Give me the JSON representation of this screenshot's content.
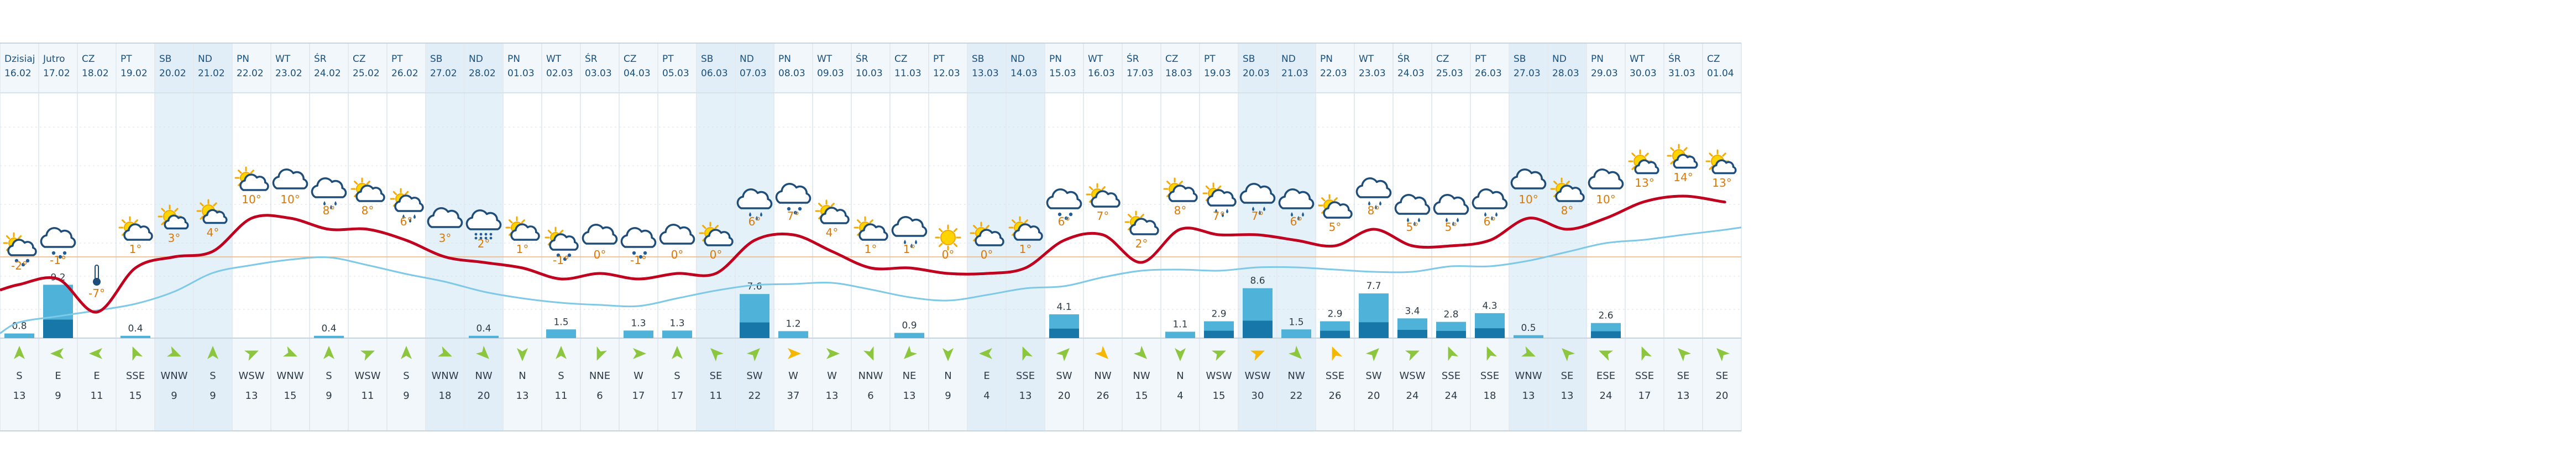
{
  "chart_data": {
    "type": "meteogram",
    "days": [
      {
        "day": "Dzisiaj",
        "date": "16.02",
        "temp": -2,
        "weather": "partly-cloudy-snow",
        "precip": 0.8,
        "wind_dir": "S",
        "wind_speed": 13,
        "weekend": false
      },
      {
        "day": "Jutro",
        "date": "17.02",
        "temp": -1,
        "weather": "cloud-snow",
        "precip": 9.2,
        "wind_dir": "E",
        "wind_speed": 9,
        "weekend": false
      },
      {
        "day": "CZ",
        "date": "18.02",
        "temp": -7,
        "weather": "cold-thermometer",
        "precip": 0,
        "wind_dir": "E",
        "wind_speed": 11,
        "weekend": false
      },
      {
        "day": "PT",
        "date": "19.02",
        "temp": 1,
        "weather": "partly-cloudy",
        "precip": 0.4,
        "wind_dir": "SSE",
        "wind_speed": 15,
        "weekend": false
      },
      {
        "day": "SB",
        "date": "20.02",
        "temp": 3,
        "weather": "sunny-cloud",
        "precip": 0,
        "wind_dir": "WNW",
        "wind_speed": 9,
        "weekend": true
      },
      {
        "day": "ND",
        "date": "21.02",
        "temp": 4,
        "weather": "sunny-cloud",
        "precip": 0,
        "wind_dir": "S",
        "wind_speed": 9,
        "weekend": true
      },
      {
        "day": "PN",
        "date": "22.02",
        "temp": 10,
        "weather": "partly-cloudy",
        "precip": 0,
        "wind_dir": "WSW",
        "wind_speed": 13,
        "weekend": false
      },
      {
        "day": "WT",
        "date": "23.02",
        "temp": 10,
        "weather": "cloudy",
        "precip": 0,
        "wind_dir": "WNW",
        "wind_speed": 15,
        "weekend": false
      },
      {
        "day": "ŚR",
        "date": "24.02",
        "temp": 8,
        "weather": "cloud-rain",
        "precip": 0.4,
        "wind_dir": "S",
        "wind_speed": 9,
        "weekend": false
      },
      {
        "day": "CZ",
        "date": "25.02",
        "temp": 8,
        "weather": "partly-cloudy",
        "precip": 0,
        "wind_dir": "WSW",
        "wind_speed": 11,
        "weekend": false
      },
      {
        "day": "PT",
        "date": "26.02",
        "temp": 6,
        "weather": "partly-cloudy-rain",
        "precip": 0,
        "wind_dir": "S",
        "wind_speed": 9,
        "weekend": false
      },
      {
        "day": "SB",
        "date": "27.02",
        "temp": 3,
        "weather": "cloudy",
        "precip": 0,
        "wind_dir": "WNW",
        "wind_speed": 18,
        "weekend": true
      },
      {
        "day": "ND",
        "date": "28.02",
        "temp": 2,
        "weather": "cloud-snow-heavy",
        "precip": 0.4,
        "wind_dir": "NW",
        "wind_speed": 20,
        "weekend": true
      },
      {
        "day": "PN",
        "date": "01.03",
        "temp": 1,
        "weather": "partly-cloudy",
        "precip": 0,
        "wind_dir": "N",
        "wind_speed": 13,
        "weekend": false
      },
      {
        "day": "WT",
        "date": "02.03",
        "temp": -1,
        "weather": "partly-cloudy-snow",
        "precip": 1.5,
        "wind_dir": "S",
        "wind_speed": 11,
        "weekend": false
      },
      {
        "day": "ŚR",
        "date": "03.03",
        "temp": 0,
        "weather": "cloudy",
        "precip": 0,
        "wind_dir": "NNE",
        "wind_speed": 6,
        "weekend": false
      },
      {
        "day": "CZ",
        "date": "04.03",
        "temp": -1,
        "weather": "cloud-snow",
        "precip": 1.3,
        "wind_dir": "W",
        "wind_speed": 17,
        "weekend": false
      },
      {
        "day": "PT",
        "date": "05.03",
        "temp": 0,
        "weather": "cloudy",
        "precip": 1.3,
        "wind_dir": "S",
        "wind_speed": 17,
        "weekend": false
      },
      {
        "day": "SB",
        "date": "06.03",
        "temp": 0,
        "weather": "partly-cloudy",
        "precip": 0,
        "wind_dir": "SE",
        "wind_speed": 11,
        "weekend": true
      },
      {
        "day": "ND",
        "date": "07.03",
        "temp": 6,
        "weather": "cloud-rain",
        "precip": 7.6,
        "wind_dir": "SW",
        "wind_speed": 22,
        "weekend": true
      },
      {
        "day": "PN",
        "date": "08.03",
        "temp": 7,
        "weather": "cloud-snow",
        "precip": 1.2,
        "wind_dir": "W",
        "wind_speed": 37,
        "weekend": false
      },
      {
        "day": "WT",
        "date": "09.03",
        "temp": 4,
        "weather": "partly-cloudy",
        "precip": 0,
        "wind_dir": "W",
        "wind_speed": 13,
        "weekend": false
      },
      {
        "day": "ŚR",
        "date": "10.03",
        "temp": 1,
        "weather": "partly-cloudy",
        "precip": 0,
        "wind_dir": "NNW",
        "wind_speed": 6,
        "weekend": false
      },
      {
        "day": "CZ",
        "date": "11.03",
        "temp": 1,
        "weather": "cloud-rain",
        "precip": 0.9,
        "wind_dir": "NE",
        "wind_speed": 13,
        "weekend": false
      },
      {
        "day": "PT",
        "date": "12.03",
        "temp": 0,
        "weather": "sunny",
        "precip": 0,
        "wind_dir": "N",
        "wind_speed": 9,
        "weekend": false
      },
      {
        "day": "SB",
        "date": "13.03",
        "temp": 0,
        "weather": "partly-cloudy",
        "precip": 0,
        "wind_dir": "E",
        "wind_speed": 4,
        "weekend": true
      },
      {
        "day": "ND",
        "date": "14.03",
        "temp": 1,
        "weather": "partly-cloudy",
        "precip": 0,
        "wind_dir": "SSE",
        "wind_speed": 13,
        "weekend": true
      },
      {
        "day": "PN",
        "date": "15.03",
        "temp": 6,
        "weather": "cloud-snow",
        "precip": 4.1,
        "wind_dir": "SW",
        "wind_speed": 20,
        "weekend": false
      },
      {
        "day": "WT",
        "date": "16.03",
        "temp": 7,
        "weather": "partly-cloudy",
        "precip": 0,
        "wind_dir": "NW",
        "wind_speed": 26,
        "weekend": false
      },
      {
        "day": "ŚR",
        "date": "17.03",
        "temp": 2,
        "weather": "partly-cloudy",
        "precip": 0,
        "wind_dir": "NW",
        "wind_speed": 15,
        "weekend": false
      },
      {
        "day": "CZ",
        "date": "18.03",
        "temp": 8,
        "weather": "partly-cloudy",
        "precip": 1.1,
        "wind_dir": "N",
        "wind_speed": 4,
        "weekend": false
      },
      {
        "day": "PT",
        "date": "19.03",
        "temp": 7,
        "weather": "partly-cloudy-rain",
        "precip": 2.9,
        "wind_dir": "WSW",
        "wind_speed": 15,
        "weekend": false
      },
      {
        "day": "SB",
        "date": "20.03",
        "temp": 7,
        "weather": "cloud-rain",
        "precip": 8.6,
        "wind_dir": "WSW",
        "wind_speed": 30,
        "weekend": true
      },
      {
        "day": "ND",
        "date": "21.03",
        "temp": 6,
        "weather": "cloud-rain",
        "precip": 1.5,
        "wind_dir": "NW",
        "wind_speed": 22,
        "weekend": true
      },
      {
        "day": "PN",
        "date": "22.03",
        "temp": 5,
        "weather": "partly-cloudy",
        "precip": 2.9,
        "wind_dir": "SSE",
        "wind_speed": 26,
        "weekend": false
      },
      {
        "day": "WT",
        "date": "23.03",
        "temp": 8,
        "weather": "cloud-rain",
        "precip": 7.7,
        "wind_dir": "SW",
        "wind_speed": 20,
        "weekend": false
      },
      {
        "day": "ŚR",
        "date": "24.03",
        "temp": 5,
        "weather": "cloud-rain",
        "precip": 3.4,
        "wind_dir": "WSW",
        "wind_speed": 24,
        "weekend": false
      },
      {
        "day": "CZ",
        "date": "25.03",
        "temp": 5,
        "weather": "cloud-rain",
        "precip": 2.8,
        "wind_dir": "SSE",
        "wind_speed": 24,
        "weekend": false
      },
      {
        "day": "PT",
        "date": "26.03",
        "temp": 6,
        "weather": "cloud-rain",
        "precip": 4.3,
        "wind_dir": "SSE",
        "wind_speed": 18,
        "weekend": false
      },
      {
        "day": "SB",
        "date": "27.03",
        "temp": 10,
        "weather": "cloudy",
        "precip": 0.5,
        "wind_dir": "WNW",
        "wind_speed": 13,
        "weekend": true
      },
      {
        "day": "ND",
        "date": "28.03",
        "temp": 8,
        "weather": "partly-cloudy",
        "precip": 0,
        "wind_dir": "SE",
        "wind_speed": 13,
        "weekend": true
      },
      {
        "day": "PN",
        "date": "29.03",
        "temp": 10,
        "weather": "cloudy",
        "precip": 2.6,
        "wind_dir": "ESE",
        "wind_speed": 24,
        "weekend": false
      },
      {
        "day": "WT",
        "date": "30.03",
        "temp": 13,
        "weather": "sunny-cloud",
        "precip": 0,
        "wind_dir": "SSE",
        "wind_speed": 17,
        "weekend": false
      },
      {
        "day": "ŚR",
        "date": "31.03",
        "temp": 14,
        "weather": "sunny-cloud",
        "precip": 0,
        "wind_dir": "SE",
        "wind_speed": 13,
        "weekend": false
      },
      {
        "day": "CZ",
        "date": "01.04",
        "temp": 13,
        "weather": "sunny-cloud",
        "precip": 0,
        "wind_dir": "SE",
        "wind_speed": 20,
        "weekend": false
      }
    ],
    "colors": {
      "temp_line": "#c0001e",
      "aux_line": "#7ec8e8",
      "bar": "#4fb2d8",
      "bar_dark": "#1777a8",
      "weekend_bg": "#e4f1f9",
      "header_bg": "#f2f7fb",
      "grid": "#e3eaf0",
      "label_temp": "#e07800",
      "arrow": "#8cc63e",
      "arrow_strong": "#f5b800"
    }
  }
}
